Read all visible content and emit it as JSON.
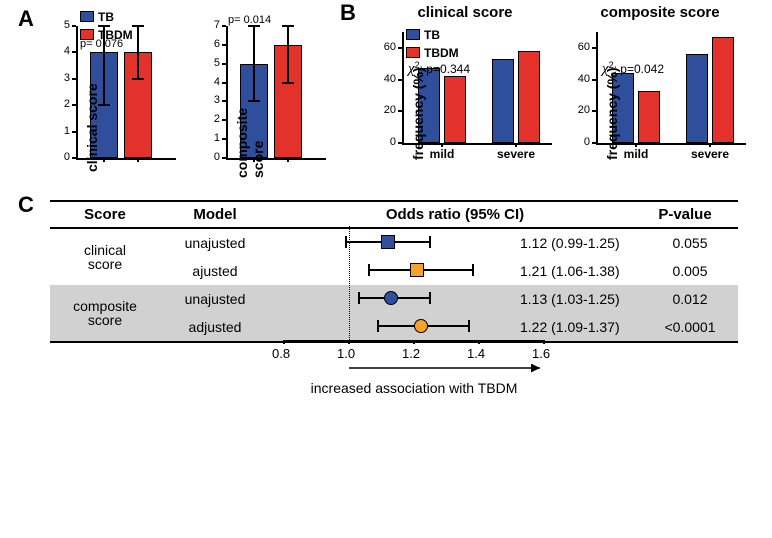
{
  "colors": {
    "tb": "#2f4e9c",
    "tbdm": "#e3312b",
    "unadjusted": "#2f4e9c",
    "adjusted": "#f7a128",
    "grey_row": "#d1d1d1",
    "axis": "#000000",
    "bg": "#ffffff"
  },
  "panelA": {
    "legend": {
      "tb": "TB",
      "tbdm": "TBDM"
    },
    "left": {
      "y_title": "clinical score",
      "p_text": "p= 0.076",
      "ylim": [
        0,
        5
      ],
      "ytick_step": 1,
      "bars": [
        {
          "group": "TB",
          "value": 4,
          "err_low": 2,
          "err_high": 5
        },
        {
          "group": "TBDM",
          "value": 4,
          "err_low": 3,
          "err_high": 5
        }
      ]
    },
    "right": {
      "y_title": "composite score",
      "p_text": "p= 0.014",
      "ylim": [
        0,
        7
      ],
      "ytick_step": 1,
      "bars": [
        {
          "group": "TB",
          "value": 5,
          "err_low": 3,
          "err_high": 7
        },
        {
          "group": "TBDM",
          "value": 6,
          "err_low": 4,
          "err_high": 7
        }
      ]
    }
  },
  "panelB": {
    "y_title": "frequency (%)",
    "ylim": [
      0,
      60
    ],
    "ytick_step": 20,
    "legend": {
      "tb": "TB",
      "tbdm": "TBDM"
    },
    "left": {
      "title": "clinical score",
      "chi_text": "p=0.344",
      "cats": [
        "mild",
        "severe"
      ],
      "tb": [
        47,
        53
      ],
      "tbdm": [
        42,
        58
      ]
    },
    "right": {
      "title": "composite score",
      "chi_text": "p=0.042",
      "cats": [
        "mild",
        "severe"
      ],
      "tb": [
        44,
        56
      ],
      "tbdm": [
        33,
        67
      ]
    }
  },
  "panelC": {
    "headers": {
      "score": "Score",
      "model": "Model",
      "or": "Odds ratio (95% CI)",
      "p": "P-value"
    },
    "xlim": [
      0.8,
      1.6
    ],
    "xtick_step": 0.2,
    "ref": 1.0,
    "axis_caption": "increased association with TBDM",
    "rows": [
      {
        "score": "clinical score",
        "model": "unajusted",
        "or": 1.12,
        "lo": 0.99,
        "hi": 1.25,
        "or_text": "1.12 (0.99-1.25)",
        "p": "0.055",
        "shape": "square",
        "color": "#2f4e9c"
      },
      {
        "score": "",
        "model": "ajusted",
        "or": 1.21,
        "lo": 1.06,
        "hi": 1.38,
        "or_text": "1.21 (1.06-1.38)",
        "p": "0.005",
        "shape": "square",
        "color": "#f7a128"
      },
      {
        "score": "composite score",
        "model": "unajusted",
        "or": 1.13,
        "lo": 1.03,
        "hi": 1.25,
        "or_text": "1.13 (1.03-1.25)",
        "p": "0.012",
        "shape": "circle",
        "color": "#2f4e9c"
      },
      {
        "score": "",
        "model": "adjusted",
        "or": 1.22,
        "lo": 1.09,
        "hi": 1.37,
        "or_text": "1.22 (1.09-1.37)",
        "p": "<0.0001",
        "shape": "circle",
        "color": "#f7a128"
      }
    ]
  }
}
